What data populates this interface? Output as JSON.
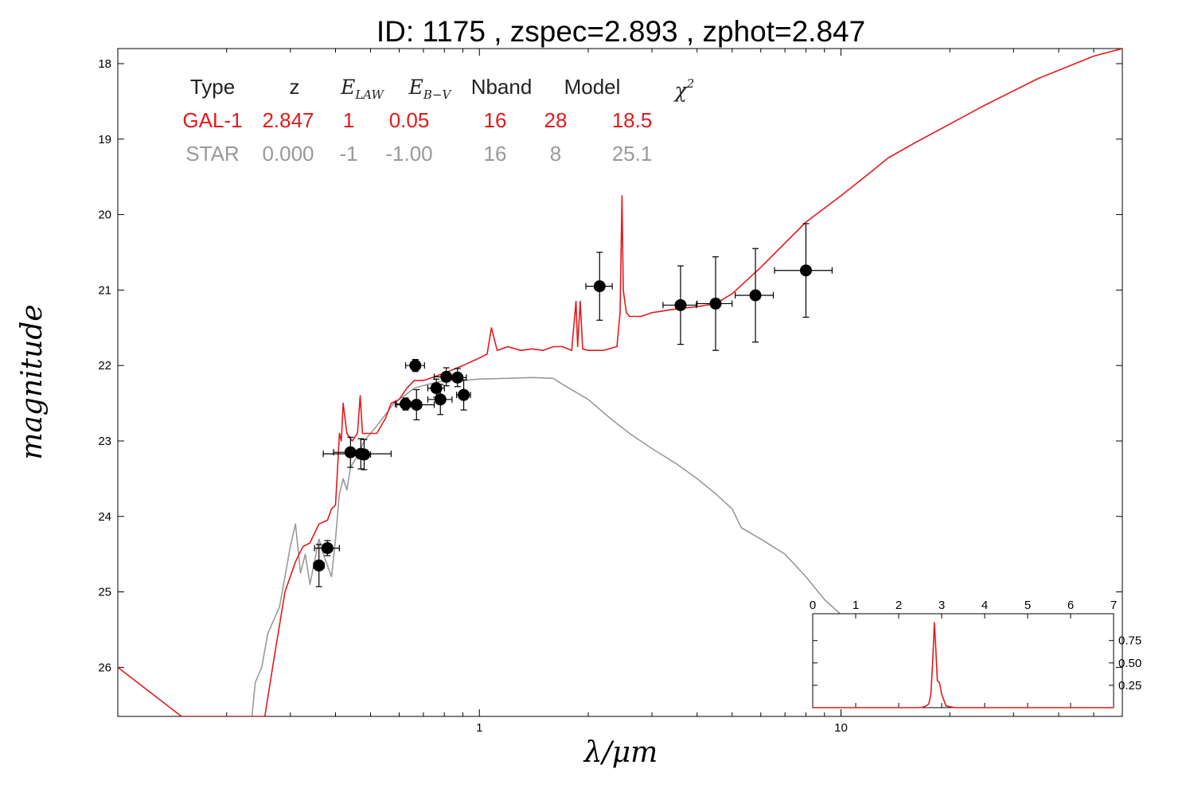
{
  "title": "ID:  1175  , zspec=2.893 , zphot=2.847",
  "chart_data": [
    {
      "type": "scatter",
      "xlabel": "λ/μm",
      "ylabel": "magnitude",
      "xscale": "log",
      "xlim": [
        0.1,
        60
      ],
      "ylim": [
        26.65,
        17.8
      ],
      "yticks": [
        "18",
        "19",
        "20",
        "21",
        "22",
        "23",
        "24",
        "25",
        "26"
      ],
      "xticks": [
        "1",
        "10"
      ],
      "table": {
        "headers": {
          "type": "Type",
          "z": "z",
          "elaw_main": "E",
          "elaw_sub": "LAW",
          "ebv_main": "E",
          "ebv_sub": "B−V",
          "nband": "Nband",
          "model": "Model",
          "chi_main": "χ",
          "chi_sup": "2"
        },
        "rows": [
          {
            "type": "GAL-1",
            "z": "2.847",
            "elaw": "1",
            "ebv": "0.05",
            "nband": "16",
            "model": "28",
            "chi2": "18.5",
            "color": "#e31a1c"
          },
          {
            "type": "STAR",
            "z": "0.000",
            "elaw": "-1",
            "ebv": "-1.00",
            "nband": "16",
            "model": "8",
            "chi2": "25.1",
            "color": "#999999"
          }
        ]
      },
      "photometry": [
        {
          "x": 0.36,
          "y": 24.65,
          "xerr": 0.012,
          "yerr": 0.28
        },
        {
          "x": 0.38,
          "y": 24.42,
          "xerr": 0.03,
          "yerr": 0.1
        },
        {
          "x": 0.44,
          "y": 23.15,
          "xerr": 0.045,
          "yerr": 0.2
        },
        {
          "x": 0.47,
          "y": 23.17,
          "xerr": 0.1,
          "yerr": 0.2
        },
        {
          "x": 0.48,
          "y": 23.18,
          "xerr": 0.02,
          "yerr": 0.2
        },
        {
          "x": 0.625,
          "y": 22.51,
          "xerr": 0.04,
          "yerr": 0.08
        },
        {
          "x": 0.665,
          "y": 22.0,
          "xerr": 0.04,
          "yerr": 0.08
        },
        {
          "x": 0.67,
          "y": 22.52,
          "xerr": 0.08,
          "yerr": 0.2
        },
        {
          "x": 0.76,
          "y": 22.3,
          "xerr": 0.04,
          "yerr": 0.12
        },
        {
          "x": 0.78,
          "y": 22.45,
          "xerr": 0.06,
          "yerr": 0.2
        },
        {
          "x": 0.81,
          "y": 22.15,
          "xerr": 0.06,
          "yerr": 0.12
        },
        {
          "x": 0.87,
          "y": 22.16,
          "xerr": 0.05,
          "yerr": 0.12
        },
        {
          "x": 0.905,
          "y": 22.39,
          "xerr": 0.04,
          "yerr": 0.2
        },
        {
          "x": 2.15,
          "y": 20.95,
          "xerr": 0.18,
          "yerr": 0.45
        },
        {
          "x": 3.6,
          "y": 21.2,
          "xerr": 0.38,
          "yerr": 0.52
        },
        {
          "x": 4.5,
          "y": 21.18,
          "xerr": 0.5,
          "yerr": 0.62
        },
        {
          "x": 5.8,
          "y": 21.07,
          "xerr": 0.7,
          "yerr": 0.62
        },
        {
          "x": 8.0,
          "y": 20.74,
          "xerr": 1.45,
          "yerr": 0.62
        }
      ],
      "series": [
        {
          "name": "GAL-1",
          "color": "#e31a1c",
          "points": [
            [
              0.1,
              26.0
            ],
            [
              0.15,
              26.65
            ],
            [
              0.195,
              26.65
            ],
            [
              0.255,
              26.65
            ],
            [
              0.27,
              25.9
            ],
            [
              0.29,
              25.0
            ],
            [
              0.31,
              24.6
            ],
            [
              0.325,
              24.4
            ],
            [
              0.34,
              24.35
            ],
            [
              0.36,
              24.1
            ],
            [
              0.38,
              24.05
            ],
            [
              0.39,
              23.9
            ],
            [
              0.4,
              23.85
            ],
            [
              0.405,
              23.4
            ],
            [
              0.41,
              22.9
            ],
            [
              0.415,
              23.0
            ],
            [
              0.42,
              22.5
            ],
            [
              0.43,
              22.9
            ],
            [
              0.445,
              23.0
            ],
            [
              0.46,
              22.9
            ],
            [
              0.468,
              22.4
            ],
            [
              0.475,
              22.9
            ],
            [
              0.49,
              22.9
            ],
            [
              0.52,
              22.9
            ],
            [
              0.55,
              22.7
            ],
            [
              0.57,
              22.5
            ],
            [
              0.6,
              22.45
            ],
            [
              0.63,
              22.3
            ],
            [
              0.66,
              22.2
            ],
            [
              0.7,
              22.2
            ],
            [
              0.75,
              22.15
            ],
            [
              0.8,
              22.1
            ],
            [
              0.85,
              22.05
            ],
            [
              0.9,
              22.0
            ],
            [
              0.95,
              21.95
            ],
            [
              1.0,
              21.9
            ],
            [
              1.05,
              21.85
            ],
            [
              1.08,
              21.5
            ],
            [
              1.12,
              21.8
            ],
            [
              1.2,
              21.75
            ],
            [
              1.3,
              21.8
            ],
            [
              1.4,
              21.78
            ],
            [
              1.5,
              21.8
            ],
            [
              1.6,
              21.75
            ],
            [
              1.7,
              21.75
            ],
            [
              1.8,
              21.8
            ],
            [
              1.85,
              21.15
            ],
            [
              1.87,
              21.75
            ],
            [
              1.9,
              21.15
            ],
            [
              1.93,
              21.78
            ],
            [
              2.0,
              21.8
            ],
            [
              2.2,
              21.8
            ],
            [
              2.4,
              21.75
            ],
            [
              2.45,
              21.3
            ],
            [
              2.48,
              19.75
            ],
            [
              2.5,
              21.0
            ],
            [
              2.55,
              21.3
            ],
            [
              2.6,
              21.35
            ],
            [
              2.8,
              21.35
            ],
            [
              3.0,
              21.3
            ],
            [
              3.5,
              21.25
            ],
            [
              4.0,
              21.22
            ],
            [
              4.5,
              21.18
            ],
            [
              5.0,
              21.05
            ],
            [
              6.0,
              20.7
            ],
            [
              8.0,
              20.1
            ],
            [
              10.0,
              19.75
            ],
            [
              12.0,
              19.45
            ],
            [
              13.5,
              19.25
            ],
            [
              16.0,
              19.05
            ],
            [
              20.0,
              18.8
            ],
            [
              25.0,
              18.55
            ],
            [
              35.0,
              18.2
            ],
            [
              50.0,
              17.9
            ],
            [
              60.0,
              17.8
            ]
          ]
        },
        {
          "name": "STAR",
          "color": "#999999",
          "points": [
            [
              0.235,
              26.65
            ],
            [
              0.24,
              26.2
            ],
            [
              0.25,
              26.0
            ],
            [
              0.26,
              25.55
            ],
            [
              0.28,
              25.2
            ],
            [
              0.29,
              24.8
            ],
            [
              0.3,
              24.4
            ],
            [
              0.31,
              24.1
            ],
            [
              0.32,
              24.75
            ],
            [
              0.33,
              24.5
            ],
            [
              0.34,
              24.9
            ],
            [
              0.36,
              24.3
            ],
            [
              0.37,
              24.5
            ],
            [
              0.39,
              24.8
            ],
            [
              0.4,
              24.3
            ],
            [
              0.41,
              23.7
            ],
            [
              0.42,
              23.5
            ],
            [
              0.43,
              23.65
            ],
            [
              0.44,
              23.35
            ],
            [
              0.46,
              23.2
            ],
            [
              0.48,
              23.0
            ],
            [
              0.5,
              22.9
            ],
            [
              0.52,
              22.8
            ],
            [
              0.55,
              22.65
            ],
            [
              0.58,
              22.5
            ],
            [
              0.62,
              22.4
            ],
            [
              0.66,
              22.3
            ],
            [
              0.72,
              22.25
            ],
            [
              0.8,
              22.2
            ],
            [
              0.9,
              22.2
            ],
            [
              1.0,
              22.18
            ],
            [
              1.2,
              22.17
            ],
            [
              1.4,
              22.16
            ],
            [
              1.6,
              22.17
            ],
            [
              1.7,
              22.25
            ],
            [
              2.0,
              22.45
            ],
            [
              2.3,
              22.7
            ],
            [
              2.6,
              22.9
            ],
            [
              3.0,
              23.1
            ],
            [
              3.5,
              23.3
            ],
            [
              4.0,
              23.5
            ],
            [
              4.5,
              23.7
            ],
            [
              5.0,
              23.9
            ],
            [
              5.3,
              24.15
            ],
            [
              6.0,
              24.3
            ],
            [
              7.0,
              24.5
            ],
            [
              8.0,
              24.8
            ],
            [
              9.0,
              25.1
            ],
            [
              10.0,
              25.3
            ],
            [
              10.5,
              25.38
            ]
          ]
        }
      ],
      "inset": {
        "type": "line",
        "xlim": [
          0,
          7
        ],
        "ylim": [
          0,
          1.05
        ],
        "xticks": [
          "0",
          "1",
          "2",
          "3",
          "4",
          "5",
          "6",
          "7"
        ],
        "yticks": [
          "0.25",
          "0.50",
          "0.75"
        ],
        "color": "#e31a1c",
        "points": [
          [
            0,
            0.0
          ],
          [
            2.5,
            0.0
          ],
          [
            2.6,
            0.01
          ],
          [
            2.7,
            0.04
          ],
          [
            2.75,
            0.15
          ],
          [
            2.8,
            0.6
          ],
          [
            2.83,
            0.95
          ],
          [
            2.86,
            0.7
          ],
          [
            2.9,
            0.3
          ],
          [
            2.95,
            0.28
          ],
          [
            3.0,
            0.15
          ],
          [
            3.1,
            0.02
          ],
          [
            3.3,
            0.0
          ],
          [
            7,
            0.0
          ]
        ]
      }
    }
  ]
}
